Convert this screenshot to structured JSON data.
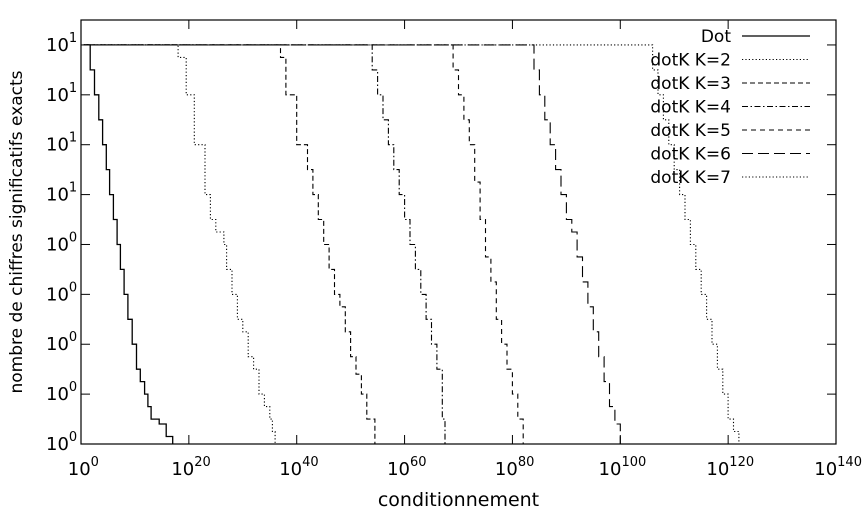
{
  "chart_data": {
    "type": "line",
    "xlabel": "conditionnement",
    "ylabel": "nombre de chiffres significatifs exacts",
    "x_scale": "log10",
    "xlim_exp": [
      0,
      140
    ],
    "ylim": [
      0,
      17
    ],
    "x_ticks": [
      {
        "base": "10",
        "exp": "0",
        "value_exp": 0
      },
      {
        "base": "10",
        "exp": "20",
        "value_exp": 20
      },
      {
        "base": "10",
        "exp": "40",
        "value_exp": 40
      },
      {
        "base": "10",
        "exp": "60",
        "value_exp": 60
      },
      {
        "base": "10",
        "exp": "80",
        "value_exp": 80
      },
      {
        "base": "10",
        "exp": "100",
        "value_exp": 100
      },
      {
        "base": "10",
        "exp": "120",
        "value_exp": 120
      },
      {
        "base": "10",
        "exp": "140",
        "value_exp": 140
      }
    ],
    "y_ticks": [
      {
        "base": "10",
        "exp": "0",
        "value": 0
      },
      {
        "base": "10",
        "exp": "0",
        "value": 2
      },
      {
        "base": "10",
        "exp": "0",
        "value": 4
      },
      {
        "base": "10",
        "exp": "0",
        "value": 6
      },
      {
        "base": "10",
        "exp": "0",
        "value": 8
      },
      {
        "base": "10",
        "exp": "1",
        "value": 10
      },
      {
        "base": "10",
        "exp": "1",
        "value": 12
      },
      {
        "base": "10",
        "exp": "1",
        "value": 14
      },
      {
        "base": "10",
        "exp": "1",
        "value": 16
      }
    ],
    "legend_position": "top-right",
    "series": [
      {
        "name": "Dot",
        "dash": "none",
        "stroke_width": 1.3,
        "x": [
          1,
          1.5,
          1.7,
          2.5,
          3.3,
          4,
          4.7,
          5.3,
          6,
          6.7,
          7.3,
          8,
          8.7,
          9.5,
          10.3,
          11,
          11.8,
          12.4,
          13,
          14.5,
          15.8,
          17
        ],
        "y": [
          16,
          16,
          15,
          14,
          13,
          12,
          11,
          10,
          9,
          8,
          7,
          6,
          5,
          4,
          3,
          2.5,
          2,
          1.5,
          1,
          0.8,
          0.3,
          0
        ]
      },
      {
        "name": "dotK K=2",
        "dash": "1.2,2.2",
        "stroke_width": 1.1,
        "x": [
          0.5,
          17,
          18,
          19.5,
          21,
          23,
          24,
          25,
          26.5,
          27,
          28,
          29,
          30,
          31,
          32,
          33,
          34,
          35,
          35.5,
          36
        ],
        "y": [
          16,
          16,
          15.5,
          14,
          12,
          10,
          9,
          8.5,
          8,
          7,
          6,
          5,
          4.5,
          3.5,
          3,
          2,
          1.5,
          1,
          0.5,
          0
        ]
      },
      {
        "name": "dotK K=3",
        "dash": "5,3",
        "stroke_width": 1.1,
        "x": [
          0.5,
          36,
          37,
          38,
          40,
          42,
          43,
          44,
          45,
          46,
          47,
          48,
          49,
          50,
          51,
          52,
          53,
          54.5
        ],
        "y": [
          16,
          16,
          15.5,
          14,
          12,
          11,
          10,
          9,
          8,
          7,
          6,
          5.5,
          4.5,
          3.5,
          2.8,
          2,
          1,
          0
        ]
      },
      {
        "name": "dotK K=4",
        "dash": "6,2.5,1.5,2.5",
        "stroke_width": 1.1,
        "x": [
          0.5,
          53,
          54,
          55,
          56,
          57,
          58,
          59,
          60,
          61,
          62,
          63,
          64,
          65,
          66,
          67,
          67.5
        ],
        "y": [
          16,
          16,
          15,
          14,
          13,
          12,
          11,
          10,
          9,
          8,
          7,
          6,
          5,
          4,
          3,
          1,
          0
        ]
      },
      {
        "name": "dotK K=5",
        "dash": "5,4",
        "stroke_width": 1.1,
        "x": [
          0.5,
          68,
          69,
          70,
          71,
          72,
          73,
          74,
          75,
          76,
          77,
          78,
          79,
          80,
          81,
          82
        ],
        "y": [
          16,
          16,
          15,
          14,
          13,
          12,
          10.5,
          9,
          7.5,
          6.5,
          5,
          4,
          3,
          2,
          1,
          0
        ]
      },
      {
        "name": "dotK K=6",
        "dash": "11,5",
        "stroke_width": 1.1,
        "x": [
          0.5,
          83,
          84,
          85,
          86,
          87,
          88,
          89,
          90,
          91,
          92,
          93,
          94,
          95,
          96,
          97,
          98,
          99,
          100
        ],
        "y": [
          16,
          16,
          15,
          14,
          13,
          12,
          11,
          10,
          9,
          8.5,
          7.5,
          6.5,
          5.5,
          4.5,
          3.5,
          2.5,
          1.5,
          0.8,
          0
        ]
      },
      {
        "name": "dotK K=7",
        "dash": "1.2,2.2",
        "stroke_width": 1.1,
        "x": [
          0.5,
          105,
          106,
          107,
          108,
          109,
          110,
          111,
          112,
          113,
          114,
          115,
          116,
          117,
          118,
          119,
          120,
          121,
          122
        ],
        "y": [
          16,
          16,
          15,
          14,
          13,
          12,
          11,
          10,
          9,
          8,
          7,
          6,
          5,
          4,
          3,
          2,
          1,
          0.5,
          0
        ]
      }
    ]
  }
}
